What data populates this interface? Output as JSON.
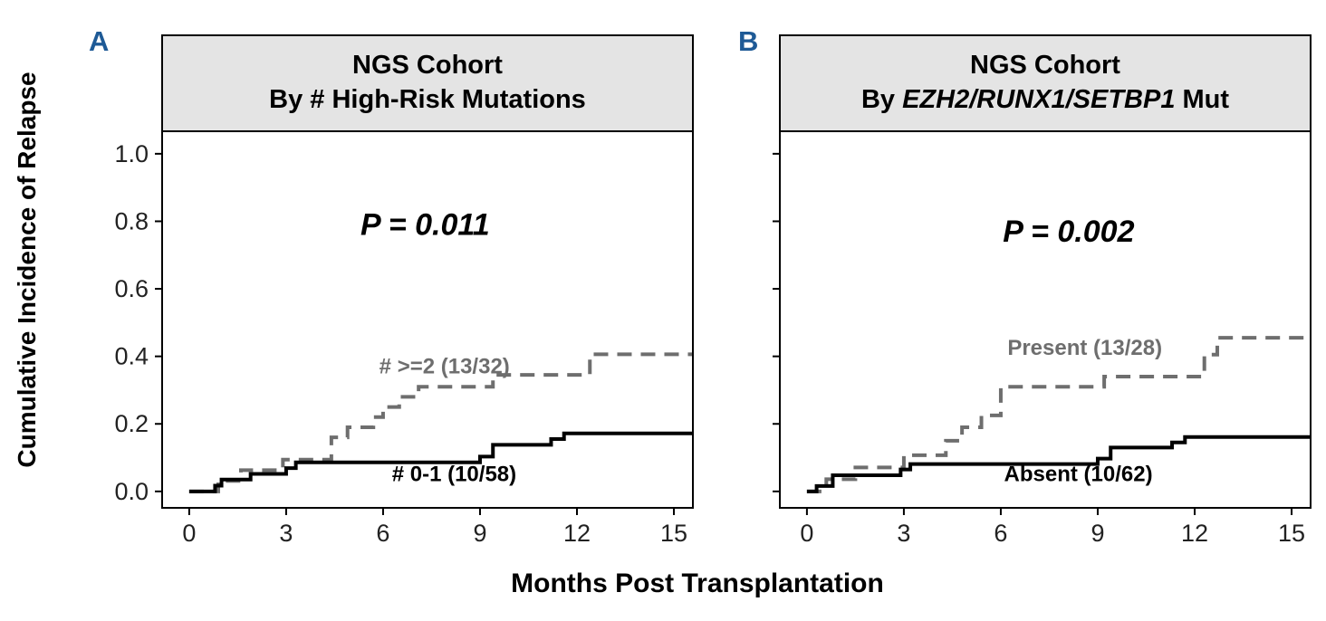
{
  "figure": {
    "ylabel": "Cumulative Incidence of Relapse",
    "xlabel": "Months Post Transplantation",
    "background": "#ffffff",
    "panel_letter_color": "#1e5a96",
    "strip_background": "#e4e4e4",
    "curve_gray": "#6e6e6e",
    "curve_black": "#000000"
  },
  "panels": [
    {
      "letter": "A",
      "title_line1": "NGS Cohort",
      "title_line2_prefix": "By # High-Risk Mutations",
      "title_line2_italic": "",
      "title_line2_suffix": ""
    },
    {
      "letter": "B",
      "title_line1": "NGS Cohort",
      "title_line2_prefix": "By ",
      "title_line2_italic": "EZH2/RUNX1/SETBP1",
      "title_line2_suffix": " Mut"
    }
  ],
  "chart_data": [
    {
      "type": "line",
      "subtype": "step-cumulative-incidence",
      "title": "NGS Cohort By # High-Risk Mutations",
      "xlabel": "Months Post Transplantation",
      "ylabel": "Cumulative Incidence of Relapse",
      "xlim": [
        -0.81,
        15.56
      ],
      "ylim": [
        -0.046,
        1.064
      ],
      "xticks": [
        0,
        3,
        6,
        9,
        12,
        15
      ],
      "yticks": [
        "0.0",
        "0.2",
        "0.4",
        "0.6",
        "0.8",
        "1.0"
      ],
      "grid": false,
      "show_y_labels": true,
      "legend": "inline-labels",
      "annotations": [
        {
          "text": "P = 0.011",
          "x": 7.3,
          "y": 0.76
        }
      ],
      "series": [
        {
          "name": "# >=2 (13/32)",
          "style": "dashed",
          "color": "#6e6e6e",
          "label_x": 7.9,
          "label_y": 0.35,
          "points": [
            [
              0,
              0
            ],
            [
              0.9,
              0.031
            ],
            [
              1.6,
              0.063
            ],
            [
              2.9,
              0.094
            ],
            [
              4.4,
              0.16
            ],
            [
              4.9,
              0.19
            ],
            [
              5.7,
              0.22
            ],
            [
              6.0,
              0.25
            ],
            [
              6.5,
              0.28
            ],
            [
              7.1,
              0.31
            ],
            [
              9.4,
              0.345
            ],
            [
              12.4,
              0.406
            ],
            [
              15.56,
              0.406
            ]
          ]
        },
        {
          "name": "# 0-1 (10/58)",
          "style": "solid",
          "color": "#000000",
          "label_x": 8.2,
          "label_y": 0.03,
          "points": [
            [
              0,
              0
            ],
            [
              0.8,
              0.017
            ],
            [
              1.0,
              0.035
            ],
            [
              1.9,
              0.052
            ],
            [
              3.0,
              0.069
            ],
            [
              3.3,
              0.086
            ],
            [
              9.0,
              0.103
            ],
            [
              9.4,
              0.138
            ],
            [
              11.2,
              0.155
            ],
            [
              11.6,
              0.172
            ],
            [
              15.56,
              0.172
            ]
          ]
        }
      ]
    },
    {
      "type": "line",
      "subtype": "step-cumulative-incidence",
      "title": "NGS Cohort By EZH2/RUNX1/SETBP1 Mut",
      "xlabel": "Months Post Transplantation",
      "ylabel": "Cumulative Incidence of Relapse",
      "xlim": [
        -0.81,
        15.56
      ],
      "ylim": [
        -0.046,
        1.064
      ],
      "xticks": [
        0,
        3,
        6,
        9,
        12,
        15
      ],
      "yticks": [
        "0.0",
        "0.2",
        "0.4",
        "0.6",
        "0.8",
        "1.0"
      ],
      "grid": false,
      "show_y_labels": false,
      "legend": "inline-labels",
      "annotations": [
        {
          "text": "P = 0.002",
          "x": 8.1,
          "y": 0.74
        }
      ],
      "series": [
        {
          "name": "Present (13/28)",
          "style": "dashed",
          "color": "#6e6e6e",
          "label_x": 8.6,
          "label_y": 0.405,
          "points": [
            [
              0,
              0
            ],
            [
              0.6,
              0.036
            ],
            [
              1.5,
              0.071
            ],
            [
              3.0,
              0.107
            ],
            [
              4.3,
              0.15
            ],
            [
              4.8,
              0.19
            ],
            [
              5.4,
              0.225
            ],
            [
              6.0,
              0.31
            ],
            [
              9.2,
              0.34
            ],
            [
              12.3,
              0.405
            ],
            [
              12.7,
              0.455
            ],
            [
              15.56,
              0.455
            ]
          ]
        },
        {
          "name": "Absent (10/62)",
          "style": "solid",
          "color": "#000000",
          "label_x": 8.4,
          "label_y": 0.03,
          "points": [
            [
              0,
              0
            ],
            [
              0.3,
              0.016
            ],
            [
              0.8,
              0.048
            ],
            [
              2.9,
              0.065
            ],
            [
              3.2,
              0.081
            ],
            [
              9.0,
              0.097
            ],
            [
              9.4,
              0.13
            ],
            [
              11.3,
              0.145
            ],
            [
              11.7,
              0.161
            ],
            [
              15.56,
              0.161
            ]
          ]
        }
      ]
    }
  ]
}
